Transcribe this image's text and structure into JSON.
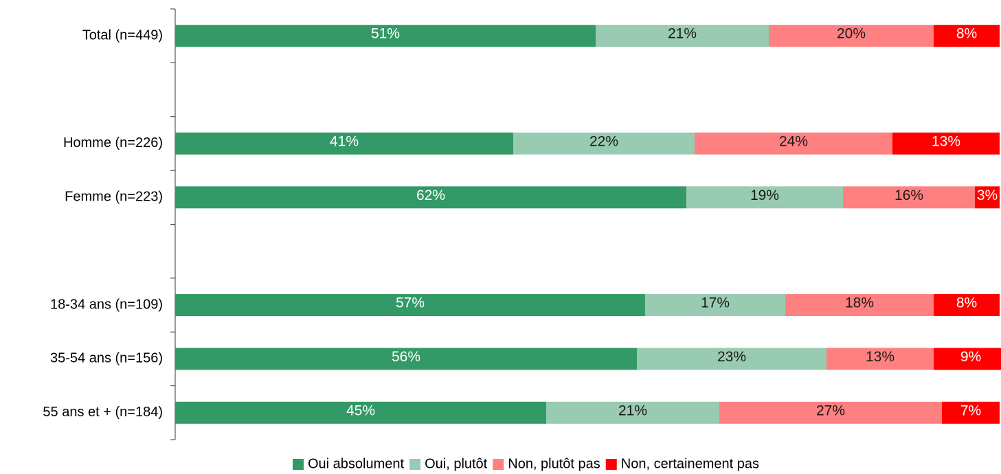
{
  "chart_data": {
    "type": "stacked_bar_horizontal",
    "categories": [
      "Total (n=449)",
      null,
      "Homme (n=226)",
      "Femme (n=223)",
      null,
      "18-34 ans (n=109)",
      "35-54 ans (n=156)",
      "55 ans et + (n=184)"
    ],
    "xlim": [
      0,
      100
    ],
    "legend": "bottom",
    "series": [
      {
        "name": "Oui absolument",
        "color": "#339966",
        "label_color": "#ffffff",
        "values": [
          51,
          null,
          41,
          62,
          null,
          57,
          56,
          45
        ],
        "value_labels": [
          "51%",
          null,
          "41%",
          "62%",
          null,
          "57%",
          "56%",
          "45%"
        ]
      },
      {
        "name": "Oui, plutôt",
        "color": "#99cbb2",
        "label_color": "#1a1a1a",
        "values": [
          21,
          null,
          22,
          19,
          null,
          17,
          23,
          21
        ],
        "value_labels": [
          "21%",
          null,
          "22%",
          "19%",
          null,
          "17%",
          "23%",
          "21%"
        ]
      },
      {
        "name": "Non, plutôt pas",
        "color": "#ff8080",
        "label_color": "#1a1a1a",
        "values": [
          20,
          null,
          24,
          16,
          null,
          18,
          13,
          27
        ],
        "value_labels": [
          "20%",
          null,
          "24%",
          "16%",
          null,
          "18%",
          "13%",
          "27%"
        ]
      },
      {
        "name": "Non, certainement pas",
        "color": "#ff0000",
        "label_color": "#ffffff",
        "values": [
          8,
          null,
          13,
          3,
          null,
          8,
          9,
          7
        ],
        "value_labels": [
          "8%",
          null,
          "13%",
          "3%",
          null,
          "8%",
          "9%",
          "7%"
        ]
      }
    ]
  }
}
